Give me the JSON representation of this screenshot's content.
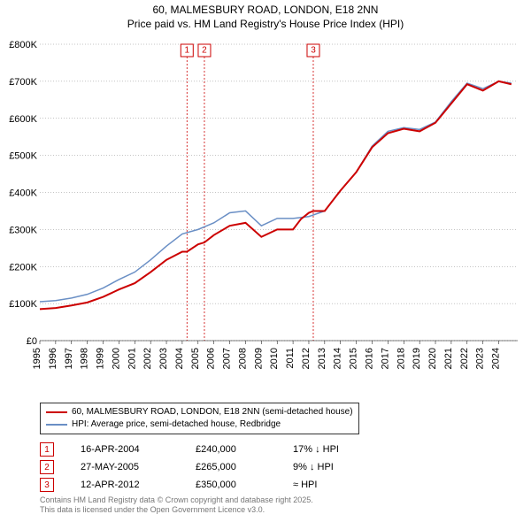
{
  "title_line1": "60, MALMESBURY ROAD, LONDON, E18 2NN",
  "title_line2": "Price paid vs. HM Land Registry's House Price Index (HPI)",
  "title_fontsize": 12,
  "chart": {
    "type": "line",
    "background_color": "#ffffff",
    "grid_color": "#888888",
    "x_years": [
      1995,
      1996,
      1997,
      1998,
      1999,
      2000,
      2001,
      2002,
      2003,
      2004,
      2005,
      2006,
      2007,
      2008,
      2009,
      2010,
      2011,
      2012,
      2013,
      2014,
      2015,
      2016,
      2017,
      2018,
      2019,
      2020,
      2021,
      2022,
      2023,
      2024
    ],
    "ylim": [
      0,
      800000
    ],
    "ytick_step": 100000,
    "yticks": [
      "£0",
      "£100K",
      "£200K",
      "£300K",
      "£400K",
      "£500K",
      "£600K",
      "£700K",
      "£800K"
    ],
    "series": [
      {
        "name": "HPI: Average price, semi-detached house, Redbridge",
        "color": "#6a8fc5",
        "line_width": 1.5,
        "points": [
          [
            1995,
            105
          ],
          [
            1996,
            108
          ],
          [
            1997,
            115
          ],
          [
            1998,
            125
          ],
          [
            1999,
            142
          ],
          [
            2000,
            165
          ],
          [
            2001,
            185
          ],
          [
            2002,
            218
          ],
          [
            2003,
            255
          ],
          [
            2004,
            288
          ],
          [
            2005,
            300
          ],
          [
            2006,
            318
          ],
          [
            2007,
            345
          ],
          [
            2008,
            350
          ],
          [
            2009,
            310
          ],
          [
            2010,
            330
          ],
          [
            2011,
            330
          ],
          [
            2012,
            335
          ],
          [
            2013,
            350
          ],
          [
            2014,
            405
          ],
          [
            2015,
            455
          ],
          [
            2016,
            525
          ],
          [
            2017,
            565
          ],
          [
            2018,
            575
          ],
          [
            2019,
            570
          ],
          [
            2020,
            590
          ],
          [
            2021,
            645
          ],
          [
            2022,
            695
          ],
          [
            2023,
            680
          ],
          [
            2024,
            700
          ],
          [
            2024.8,
            695
          ]
        ]
      },
      {
        "name": "60, MALMESBURY ROAD, LONDON, E18 2NN (semi-detached house)",
        "color": "#cc0000",
        "line_width": 2,
        "points": [
          [
            1995,
            85
          ],
          [
            1996,
            88
          ],
          [
            1997,
            95
          ],
          [
            1998,
            103
          ],
          [
            1999,
            118
          ],
          [
            2000,
            138
          ],
          [
            2001,
            155
          ],
          [
            2002,
            185
          ],
          [
            2003,
            218
          ],
          [
            2004,
            240
          ],
          [
            2004.3,
            240
          ],
          [
            2005,
            260
          ],
          [
            2005.4,
            265
          ],
          [
            2006,
            285
          ],
          [
            2007,
            310
          ],
          [
            2008,
            318
          ],
          [
            2009,
            280
          ],
          [
            2010,
            300
          ],
          [
            2011,
            300
          ],
          [
            2011.5,
            328
          ],
          [
            2012,
            345
          ],
          [
            2012.28,
            350
          ],
          [
            2013,
            350
          ],
          [
            2014,
            405
          ],
          [
            2015,
            455
          ],
          [
            2016,
            522
          ],
          [
            2017,
            560
          ],
          [
            2018,
            572
          ],
          [
            2019,
            565
          ],
          [
            2020,
            588
          ],
          [
            2021,
            640
          ],
          [
            2022,
            692
          ],
          [
            2023,
            675
          ],
          [
            2024,
            700
          ],
          [
            2024.8,
            692
          ]
        ]
      }
    ],
    "markers": [
      {
        "n": "1",
        "year": 2004.3
      },
      {
        "n": "2",
        "year": 2005.4
      },
      {
        "n": "3",
        "year": 2012.28
      }
    ]
  },
  "legend": {
    "rows": [
      {
        "color": "#cc0000",
        "label": "60, MALMESBURY ROAD, LONDON, E18 2NN (semi-detached house)"
      },
      {
        "color": "#6a8fc5",
        "label": "HPI: Average price, semi-detached house, Redbridge"
      }
    ]
  },
  "events": [
    {
      "n": "1",
      "date": "16-APR-2004",
      "price": "£240,000",
      "diff": "17% ↓ HPI"
    },
    {
      "n": "2",
      "date": "27-MAY-2005",
      "price": "£265,000",
      "diff": "9% ↓ HPI"
    },
    {
      "n": "3",
      "date": "12-APR-2012",
      "price": "£350,000",
      "diff": "≈ HPI"
    }
  ],
  "attribution_line1": "Contains HM Land Registry data © Crown copyright and database right 2025.",
  "attribution_line2": "This data is licensed under the Open Government Licence v3.0."
}
